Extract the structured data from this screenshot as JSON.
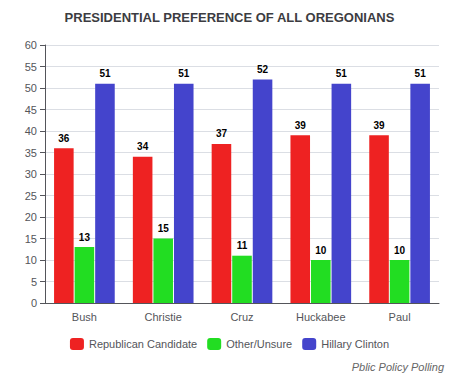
{
  "chart_data": {
    "type": "bar",
    "title": "PRESIDENTIAL PREFERENCE OF ALL OREGONIANS",
    "categories": [
      "Bush",
      "Christie",
      "Cruz",
      "Huckabee",
      "Paul"
    ],
    "series": [
      {
        "name": "Republican Candidate",
        "color": "#ee2222",
        "values": [
          36,
          34,
          37,
          39,
          39
        ]
      },
      {
        "name": "Other/Unsure",
        "color": "#22dd22",
        "values": [
          13,
          15,
          11,
          10,
          10
        ]
      },
      {
        "name": "Hillary Clinton",
        "color": "#4444cc",
        "values": [
          51,
          51,
          52,
          51,
          51
        ]
      }
    ],
    "ylim": [
      0,
      60
    ],
    "yticks": [
      0,
      5,
      10,
      15,
      20,
      25,
      30,
      35,
      40,
      45,
      50,
      55,
      60
    ],
    "grid": true,
    "data_labels": true,
    "legend": "bottom",
    "annotations": [
      "Pblic Policy Polling"
    ]
  }
}
